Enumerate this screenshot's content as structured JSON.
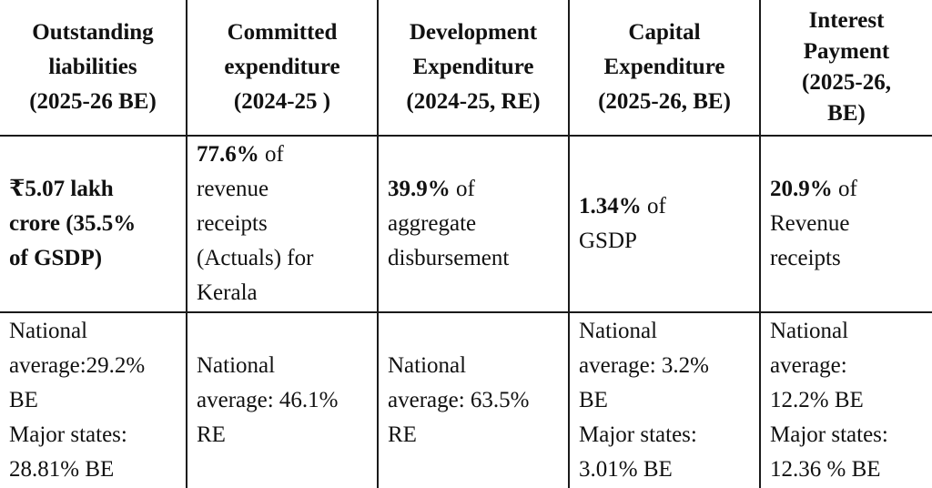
{
  "headers": [
    [
      "Outstanding",
      "liabilities",
      "(2025-26 BE)"
    ],
    [
      "Committed",
      "expenditure",
      "(2024-25 )"
    ],
    [
      "Development",
      "Expenditure",
      "(2024-25, RE)"
    ],
    [
      "Capital",
      "Expenditure",
      "(2025-26, BE)"
    ],
    [
      "Interest",
      "Payment",
      "(2025-26,",
      "BE)"
    ]
  ],
  "values": [
    {
      "bold": [
        "₹5.07 lakh",
        "crore (35.5%",
        "of GSDP)"
      ],
      "suffix": "",
      "rest": []
    },
    {
      "bold": [
        "77.6%"
      ],
      "suffix": " of",
      "rest": [
        "revenue",
        "receipts",
        "(Actuals) for",
        "Kerala"
      ]
    },
    {
      "bold": [
        "39.9%"
      ],
      "suffix": " of",
      "rest": [
        "aggregate",
        "disbursement"
      ]
    },
    {
      "bold": [
        "1.34%"
      ],
      "suffix": " of",
      "rest": [
        "GSDP"
      ]
    },
    {
      "bold": [
        "20.9%"
      ],
      "suffix": " of",
      "rest": [
        "Revenue",
        "receipts"
      ]
    }
  ],
  "national": [
    [
      "National",
      "average:29.2%",
      "BE",
      "Major states:",
      "28.81% BE"
    ],
    [
      "National",
      "average: 46.1%",
      "RE"
    ],
    [
      "National",
      "average: 63.5%",
      "RE"
    ],
    [
      "National",
      "average: 3.2%",
      "BE",
      "Major states:",
      "3.01% BE"
    ],
    [
      "National",
      "average:",
      "12.2% BE",
      "Major states:",
      "12.36 % BE"
    ]
  ]
}
